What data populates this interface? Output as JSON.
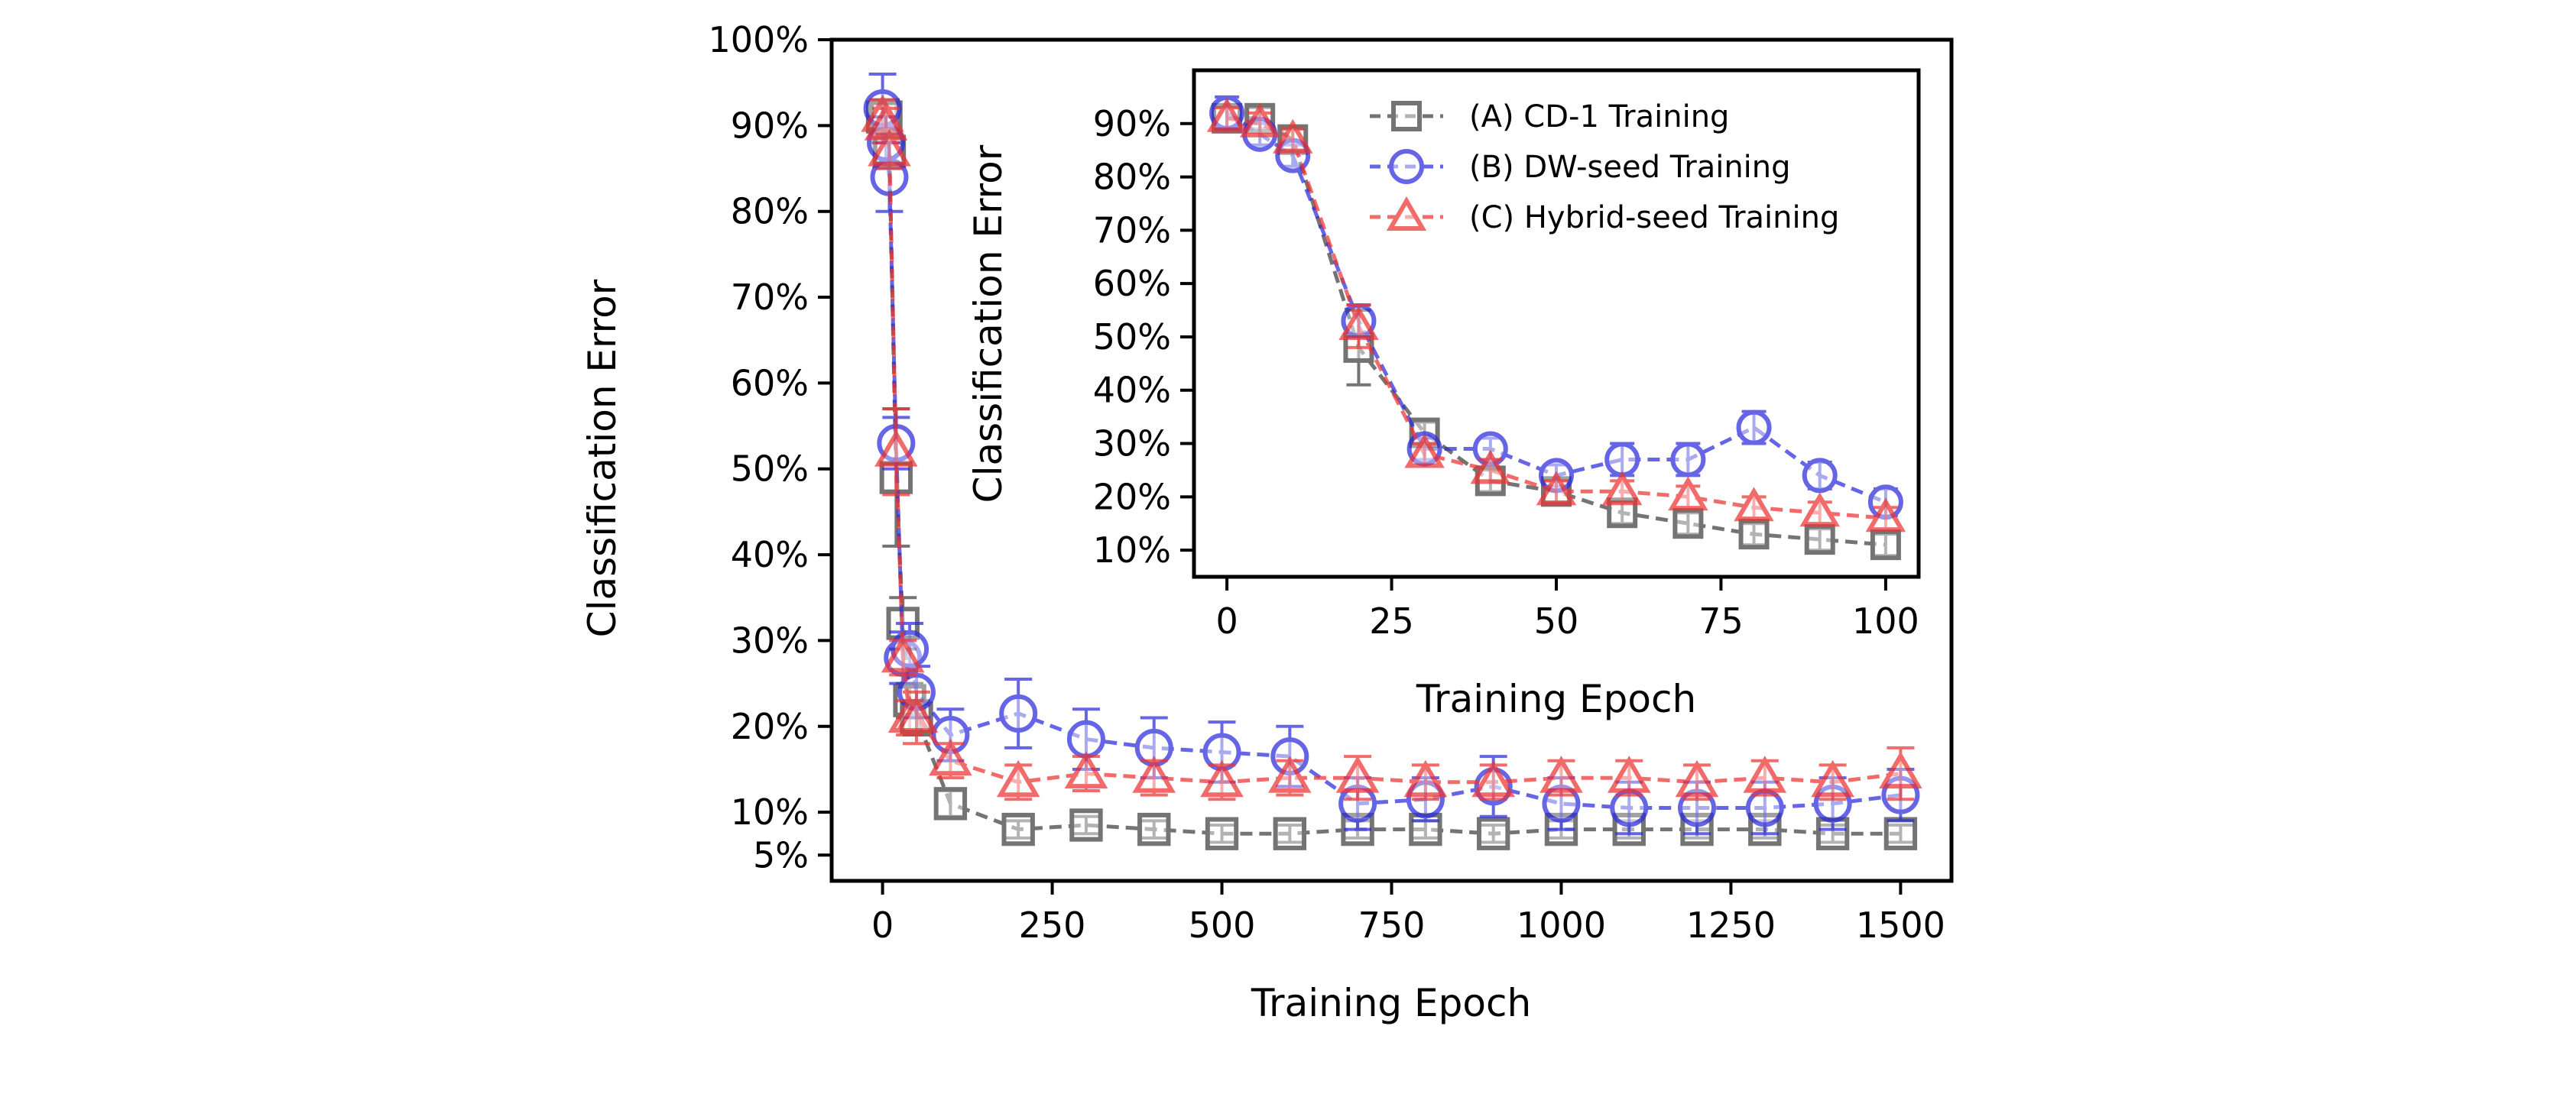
{
  "chart_data": [
    {
      "panel": "main",
      "type": "line",
      "xlabel": "Training Epoch",
      "ylabel": "Classification Error",
      "xlim": [
        -75,
        1575
      ],
      "ylim": [
        2,
        100
      ],
      "xticks": [
        0,
        250,
        500,
        750,
        1000,
        1250,
        1500
      ],
      "xtick_labels": [
        "0",
        "250",
        "500",
        "750",
        "1000",
        "1250",
        "1500"
      ],
      "yticks": [
        5,
        10,
        20,
        30,
        40,
        50,
        60,
        70,
        80,
        90,
        100
      ],
      "ytick_labels": [
        "5%",
        "10%",
        "20%",
        "30%",
        "40%",
        "50%",
        "60%",
        "70%",
        "80%",
        "90%",
        "100%"
      ],
      "grid": false,
      "series": [
        {
          "name": "(A) CD-1 Training",
          "color": "#404040",
          "marker": "square",
          "x": [
            0,
            5,
            10,
            20,
            30,
            40,
            50,
            100,
            200,
            300,
            400,
            500,
            600,
            700,
            800,
            900,
            1000,
            1100,
            1200,
            1300,
            1400,
            1500
          ],
          "values": [
            91,
            91,
            87,
            49,
            32,
            23,
            21,
            11,
            8,
            8.5,
            8,
            7.5,
            7.5,
            8,
            8,
            7.5,
            8,
            8,
            8,
            8,
            7.5,
            7.5
          ],
          "errors": [
            2,
            2,
            2,
            8,
            3,
            2,
            2,
            1.5,
            1,
            1,
            1,
            1,
            1,
            1,
            1,
            1,
            1,
            1,
            1,
            1,
            1,
            1
          ]
        },
        {
          "name": "(B) DW-seed Training",
          "color": "#2b2bdd",
          "marker": "circle",
          "x": [
            0,
            5,
            10,
            20,
            30,
            40,
            50,
            100,
            200,
            300,
            400,
            500,
            600,
            700,
            800,
            900,
            1000,
            1100,
            1200,
            1300,
            1400,
            1500
          ],
          "values": [
            92,
            88,
            84,
            53,
            28,
            29,
            24,
            19,
            21.5,
            18.5,
            17.5,
            17,
            16.5,
            11,
            11.5,
            13,
            11,
            10.5,
            10.5,
            10.5,
            11,
            12
          ],
          "errors": [
            4,
            3,
            4,
            3,
            3,
            3,
            3,
            3,
            4,
            3.5,
            3.5,
            3.5,
            3.5,
            3,
            2.5,
            3.5,
            3,
            3,
            3,
            3,
            3,
            3
          ]
        },
        {
          "name": "(C) Hybrid-seed Training",
          "color": "#ee3333",
          "marker": "triangle",
          "x": [
            0,
            5,
            10,
            20,
            30,
            40,
            50,
            100,
            200,
            300,
            400,
            500,
            600,
            700,
            800,
            900,
            1000,
            1100,
            1200,
            1300,
            1400,
            1500
          ],
          "values": [
            91,
            90,
            87,
            52,
            28,
            21,
            21,
            16,
            13.5,
            14.5,
            14,
            13.5,
            14,
            14,
            13.5,
            13.5,
            14,
            14,
            13.5,
            14,
            13.5,
            14.5
          ],
          "errors": [
            2,
            2,
            2,
            5,
            2,
            2,
            3,
            2,
            2,
            2,
            2,
            2,
            2,
            2.5,
            2,
            2,
            2,
            2,
            2,
            2,
            2,
            3
          ]
        }
      ]
    },
    {
      "panel": "inset",
      "type": "line",
      "xlabel": "Training Epoch",
      "ylabel": "Classification Error",
      "xlim": [
        -5,
        105
      ],
      "ylim": [
        5,
        100
      ],
      "xticks": [
        0,
        25,
        50,
        75,
        100
      ],
      "xtick_labels": [
        "0",
        "25",
        "50",
        "75",
        "100"
      ],
      "yticks": [
        10,
        20,
        30,
        40,
        50,
        60,
        70,
        80,
        90
      ],
      "ytick_labels": [
        "10%",
        "20%",
        "30%",
        "40%",
        "50%",
        "60%",
        "70%",
        "80%",
        "90%"
      ],
      "grid": false,
      "legend": {
        "position": "top-right",
        "entries": [
          "(A) CD-1 Training",
          "(B) DW-seed Training",
          "(C) Hybrid-seed Training"
        ]
      },
      "series": [
        {
          "name": "(A) CD-1 Training",
          "color": "#404040",
          "marker": "square",
          "x": [
            0,
            5,
            10,
            20,
            30,
            40,
            50,
            60,
            70,
            80,
            90,
            100
          ],
          "values": [
            91,
            91,
            87,
            48,
            32,
            23,
            21,
            17,
            15,
            13,
            12,
            11
          ],
          "errors": [
            2,
            2,
            2,
            7,
            2,
            2,
            2,
            2,
            2,
            2,
            2,
            2
          ]
        },
        {
          "name": "(B) DW-seed Training",
          "color": "#2b2bdd",
          "marker": "circle",
          "x": [
            0,
            5,
            10,
            20,
            30,
            40,
            50,
            60,
            70,
            80,
            90,
            100
          ],
          "values": [
            92,
            88,
            84,
            53,
            29,
            29,
            24,
            27,
            27,
            33,
            24,
            19
          ],
          "errors": [
            3,
            2,
            2,
            3,
            2,
            2,
            2,
            3,
            3,
            3,
            2.5,
            2.5
          ]
        },
        {
          "name": "(C) Hybrid-seed Training",
          "color": "#ee3333",
          "marker": "triangle",
          "x": [
            0,
            5,
            10,
            20,
            30,
            40,
            50,
            60,
            70,
            80,
            90,
            100
          ],
          "values": [
            91,
            90,
            87,
            52,
            28,
            25,
            21,
            21,
            20,
            18,
            17,
            16
          ],
          "errors": [
            2,
            2,
            2,
            4,
            2,
            2,
            2,
            2,
            2,
            2,
            2,
            2
          ]
        }
      ]
    }
  ]
}
